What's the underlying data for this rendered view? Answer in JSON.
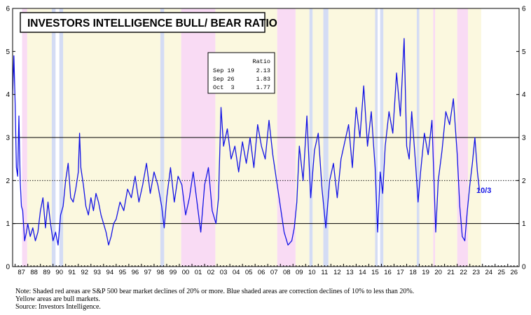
{
  "chart_data": {
    "type": "line",
    "title": "INVESTORS INTELLIGENCE BULL/ BEAR RATIO",
    "xlabel": "",
    "ylabel": "",
    "xlim": [
      1986.8,
      2026.9
    ],
    "ylim": [
      0,
      6
    ],
    "yticks": [
      0,
      1,
      2,
      3,
      4,
      5,
      6
    ],
    "xtick_labels": [
      "87",
      "88",
      "89",
      "90",
      "91",
      "92",
      "93",
      "94",
      "95",
      "96",
      "97",
      "98",
      "99",
      "00",
      "01",
      "02",
      "03",
      "04",
      "05",
      "06",
      "07",
      "08",
      "09",
      "10",
      "11",
      "12",
      "13",
      "14",
      "15",
      "16",
      "17",
      "18",
      "19",
      "20",
      "21",
      "22",
      "23",
      "24",
      "25",
      "26"
    ],
    "xtick_years": [
      1987,
      1988,
      1989,
      1990,
      1991,
      1992,
      1993,
      1994,
      1995,
      1996,
      1997,
      1998,
      1999,
      2000,
      2001,
      2002,
      2003,
      2004,
      2005,
      2006,
      2007,
      2008,
      2009,
      2010,
      2011,
      2012,
      2013,
      2014,
      2015,
      2016,
      2017,
      2018,
      2019,
      2020,
      2021,
      2022,
      2023,
      2024,
      2025,
      2026
    ],
    "reference_lines": [
      {
        "y": 1,
        "style": "solid"
      },
      {
        "y": 3,
        "style": "solid"
      },
      {
        "y": 2,
        "style": "dotted"
      }
    ],
    "shaded_regions": {
      "bear_market_red": [
        [
          1987.55,
          1987.95
        ],
        [
          2000.15,
          2002.85
        ],
        [
          2007.75,
          2009.2
        ],
        [
          2020.1,
          2020.25
        ],
        [
          2022.0,
          2022.85
        ]
      ],
      "correction_blue": [
        [
          1989.9,
          1990.2
        ],
        [
          1990.5,
          1990.8
        ],
        [
          1998.5,
          1998.8
        ],
        [
          2010.3,
          2010.55
        ],
        [
          2011.4,
          2011.8
        ],
        [
          2015.5,
          2015.7
        ],
        [
          2015.9,
          2016.15
        ],
        [
          2018.8,
          2019.0
        ]
      ],
      "bull_yellow": [
        [
          1987.95,
          1989.9
        ],
        [
          1990.8,
          1998.5
        ],
        [
          1998.8,
          2000.15
        ],
        [
          2002.85,
          2007.75
        ],
        [
          2009.2,
          2010.3
        ],
        [
          2010.55,
          2011.4
        ],
        [
          2011.8,
          2015.5
        ],
        [
          2016.15,
          2018.8
        ],
        [
          2019.0,
          2020.1
        ],
        [
          2020.25,
          2022.0
        ],
        [
          2022.85,
          2023.9
        ]
      ]
    },
    "series": [
      {
        "name": "Bull/Bear Ratio",
        "color": "#1414e6",
        "x": [
          1986.8,
          1986.9,
          1987.0,
          1987.1,
          1987.2,
          1987.3,
          1987.4,
          1987.5,
          1987.6,
          1987.75,
          1987.9,
          1988.0,
          1988.2,
          1988.4,
          1988.6,
          1988.8,
          1989.0,
          1989.2,
          1989.4,
          1989.6,
          1989.8,
          1990.0,
          1990.2,
          1990.4,
          1990.6,
          1990.8,
          1991.0,
          1991.2,
          1991.4,
          1991.6,
          1991.8,
          1992.0,
          1992.1,
          1992.2,
          1992.4,
          1992.6,
          1992.8,
          1993.0,
          1993.2,
          1993.4,
          1993.6,
          1993.8,
          1994.0,
          1994.2,
          1994.4,
          1994.6,
          1994.8,
          1995.0,
          1995.3,
          1995.6,
          1995.9,
          1996.2,
          1996.5,
          1996.8,
          1997.1,
          1997.4,
          1997.7,
          1998.0,
          1998.3,
          1998.6,
          1998.8,
          1999.0,
          1999.3,
          1999.6,
          1999.9,
          2000.2,
          2000.5,
          2000.8,
          2001.1,
          2001.4,
          2001.7,
          2002.0,
          2002.3,
          2002.6,
          2002.9,
          2003.1,
          2003.3,
          2003.5,
          2003.8,
          2004.1,
          2004.4,
          2004.7,
          2005.0,
          2005.3,
          2005.6,
          2005.9,
          2006.2,
          2006.5,
          2006.8,
          2007.1,
          2007.4,
          2007.7,
          2008.0,
          2008.3,
          2008.6,
          2008.9,
          2009.1,
          2009.3,
          2009.5,
          2009.8,
          2010.1,
          2010.4,
          2010.7,
          2011.0,
          2011.3,
          2011.6,
          2011.9,
          2012.2,
          2012.5,
          2012.8,
          2013.1,
          2013.4,
          2013.7,
          2014.0,
          2014.3,
          2014.6,
          2014.9,
          2015.2,
          2015.5,
          2015.7,
          2015.9,
          2016.1,
          2016.3,
          2016.6,
          2016.9,
          2017.2,
          2017.5,
          2017.8,
          2018.0,
          2018.2,
          2018.4,
          2018.7,
          2018.9,
          2019.1,
          2019.4,
          2019.7,
          2020.0,
          2020.15,
          2020.3,
          2020.5,
          2020.8,
          2021.1,
          2021.4,
          2021.7,
          2022.0,
          2022.2,
          2022.4,
          2022.6,
          2022.8,
          2023.0,
          2023.2,
          2023.4,
          2023.6,
          2023.76
        ],
        "y": [
          4.0,
          4.9,
          3.8,
          2.3,
          2.1,
          3.5,
          2.0,
          1.4,
          1.3,
          0.6,
          0.8,
          1.0,
          0.7,
          0.9,
          0.6,
          0.8,
          1.3,
          1.6,
          0.9,
          1.5,
          1.0,
          0.6,
          0.8,
          0.5,
          1.2,
          1.4,
          2.0,
          2.4,
          1.6,
          1.5,
          1.8,
          2.2,
          3.1,
          2.3,
          1.9,
          1.4,
          1.2,
          1.6,
          1.3,
          1.7,
          1.5,
          1.2,
          1.0,
          0.8,
          0.5,
          0.7,
          1.0,
          1.1,
          1.5,
          1.3,
          1.8,
          1.6,
          2.1,
          1.5,
          1.9,
          2.4,
          1.7,
          2.2,
          1.9,
          1.4,
          0.9,
          1.6,
          2.3,
          1.5,
          2.1,
          1.9,
          1.2,
          1.6,
          2.2,
          1.5,
          0.8,
          1.9,
          2.3,
          1.3,
          1.0,
          1.6,
          3.7,
          2.8,
          3.2,
          2.5,
          2.8,
          2.2,
          2.9,
          2.4,
          3.0,
          2.3,
          3.3,
          2.8,
          2.5,
          3.4,
          2.6,
          2.0,
          1.4,
          0.8,
          0.5,
          0.6,
          0.9,
          1.5,
          2.8,
          2.0,
          3.5,
          1.6,
          2.7,
          3.1,
          1.8,
          0.9,
          2.0,
          2.4,
          1.6,
          2.5,
          2.9,
          3.3,
          2.3,
          3.7,
          3.0,
          4.2,
          2.8,
          3.6,
          2.3,
          0.8,
          2.2,
          1.7,
          2.8,
          3.6,
          3.1,
          4.5,
          3.5,
          5.3,
          2.8,
          2.5,
          3.6,
          2.4,
          1.5,
          2.2,
          3.1,
          2.6,
          3.4,
          2.1,
          0.8,
          2.0,
          2.7,
          3.6,
          3.3,
          3.9,
          2.6,
          1.4,
          0.7,
          0.6,
          1.3,
          1.9,
          2.4,
          3.0,
          2.2,
          1.77
        ]
      }
    ],
    "inset_table": {
      "header": "Ratio",
      "rows": [
        {
          "label": "Sep 19",
          "value": "2.13"
        },
        {
          "label": "Sep 26",
          "value": "1.83"
        },
        {
          "label": "Oct  3",
          "value": "1.77"
        }
      ]
    },
    "latest_label": "10/3",
    "notes": [
      "Note: Shaded red areas are S&P 500 bear market declines of 20% or more.  Blue shaded areas are correction declines of 10% to less than 20%.",
      "Yellow areas are bull markets.",
      "Source: Investors Intelligence."
    ]
  },
  "colors": {
    "bull_yellow": "#fbf8df",
    "bear_pink": "#f9dbf4",
    "correction_blue": "#d4dcf4",
    "line_blue": "#1414e6"
  }
}
